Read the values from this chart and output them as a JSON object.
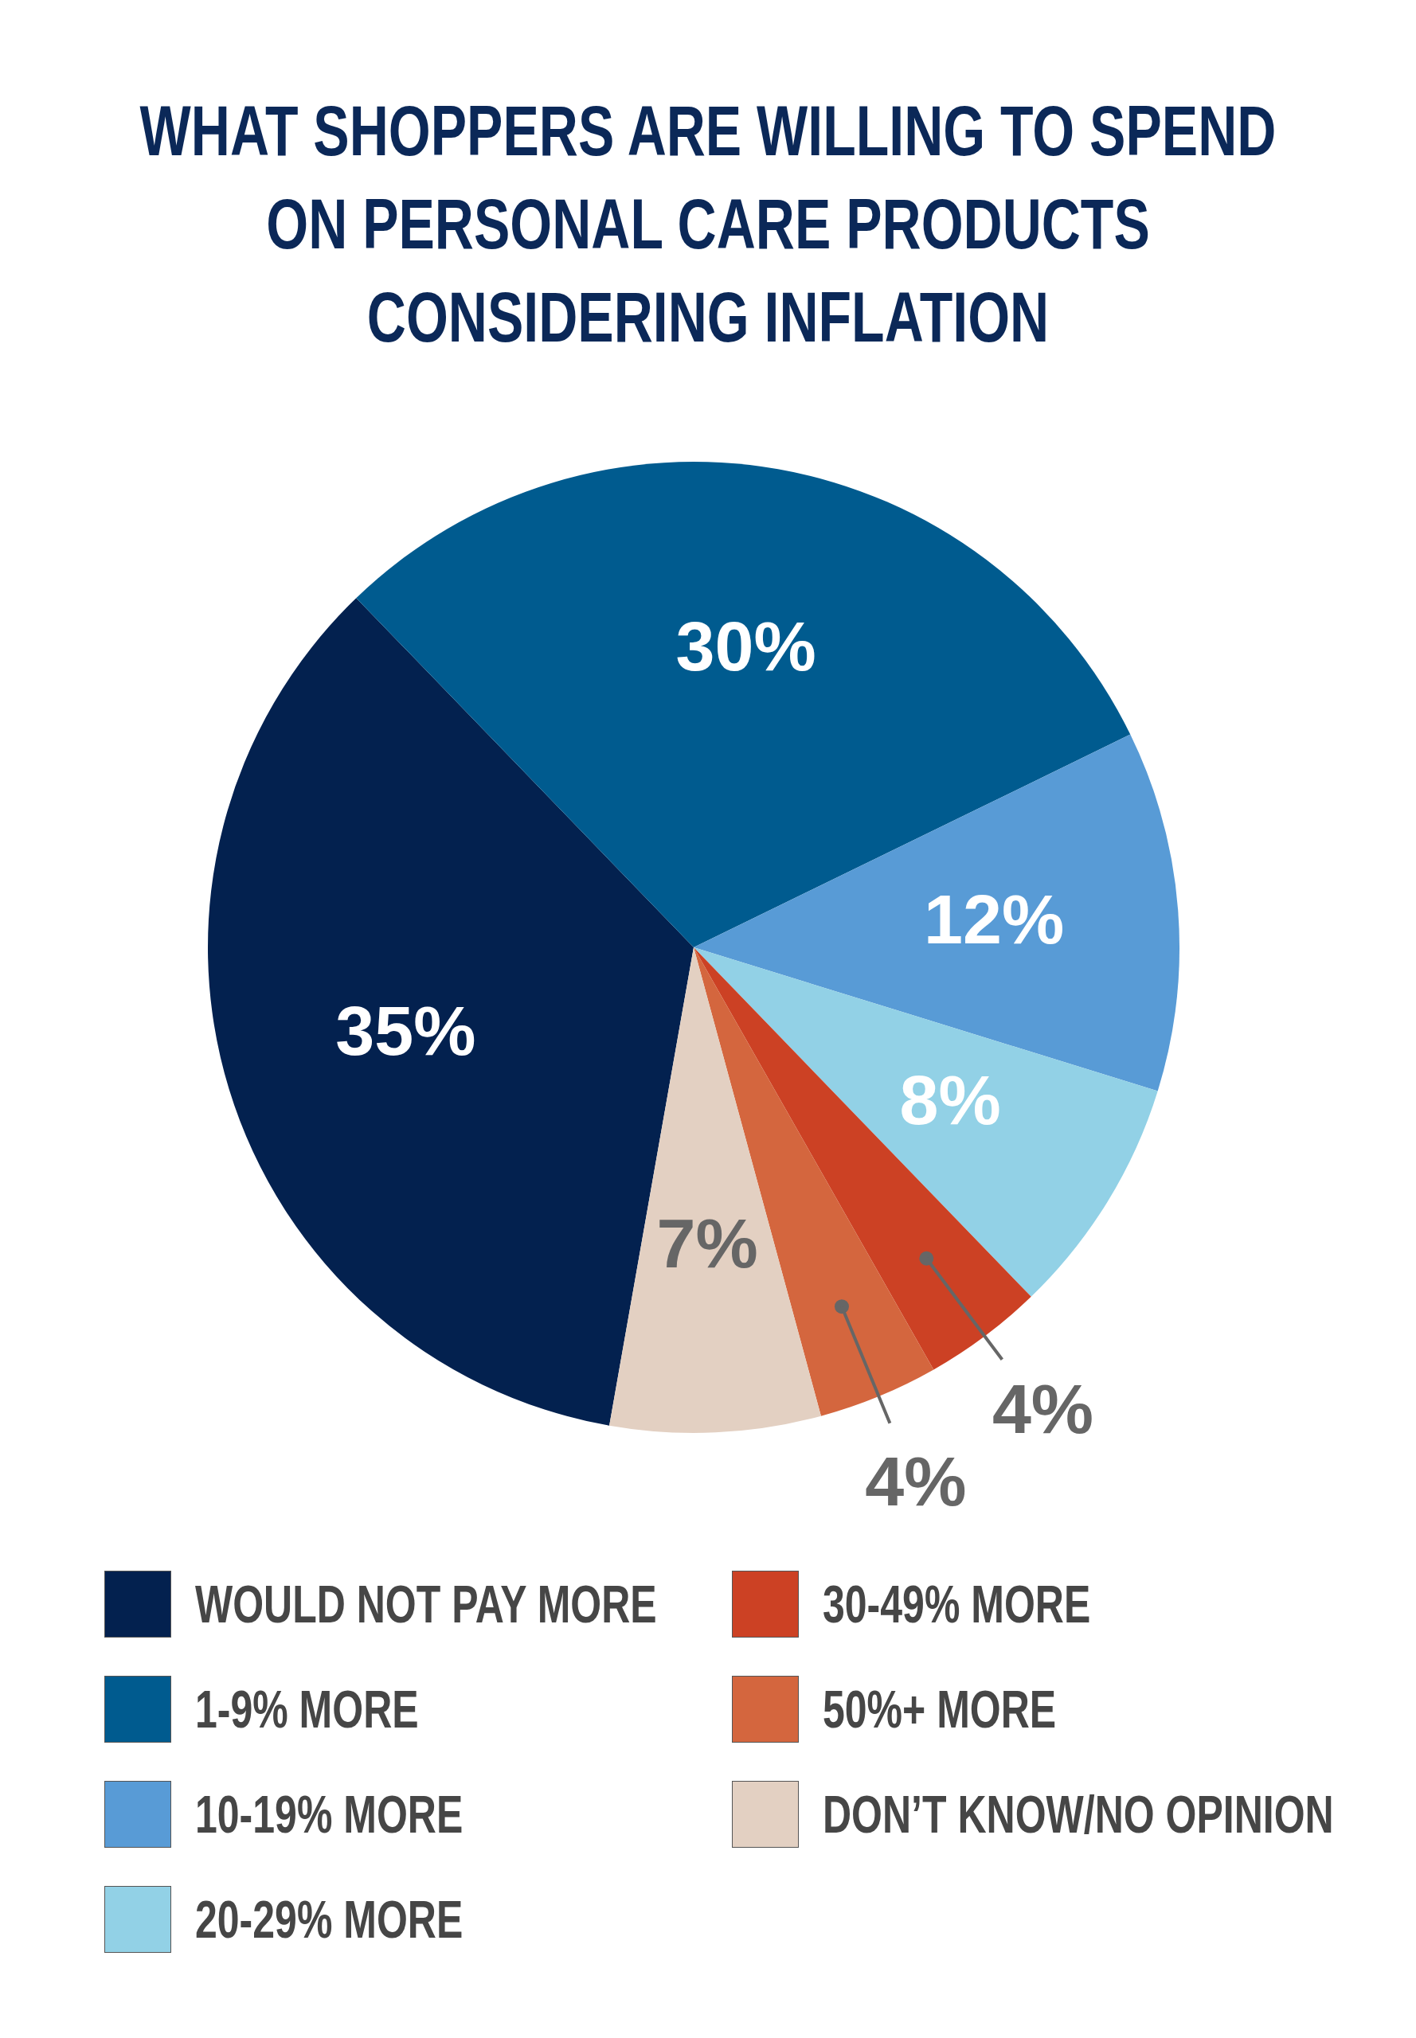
{
  "chart_data": {
    "type": "pie",
    "title": "WHAT SHOPPERS ARE WILLING TO SPEND ON PERSONAL CARE PRODUCTS CONSIDERING INFLATION",
    "categories": [
      "WOULD NOT PAY MORE",
      "1-9% MORE",
      "10-19% MORE",
      "20-29% MORE",
      "30-49% MORE",
      "50%+ MORE",
      "DON’T KNOW/NO OPINION"
    ],
    "values": [
      35,
      30,
      12,
      8,
      4,
      4,
      7
    ],
    "colors": [
      "#03214f",
      "#005b8f",
      "#589bd6",
      "#92d1e6",
      "#cc4124",
      "#d4663e",
      "#e3d0c2"
    ],
    "value_labels": [
      "35%",
      "30%",
      "12%",
      "8%",
      "4%",
      "4%",
      "7%"
    ],
    "legend": "bottom"
  }
}
